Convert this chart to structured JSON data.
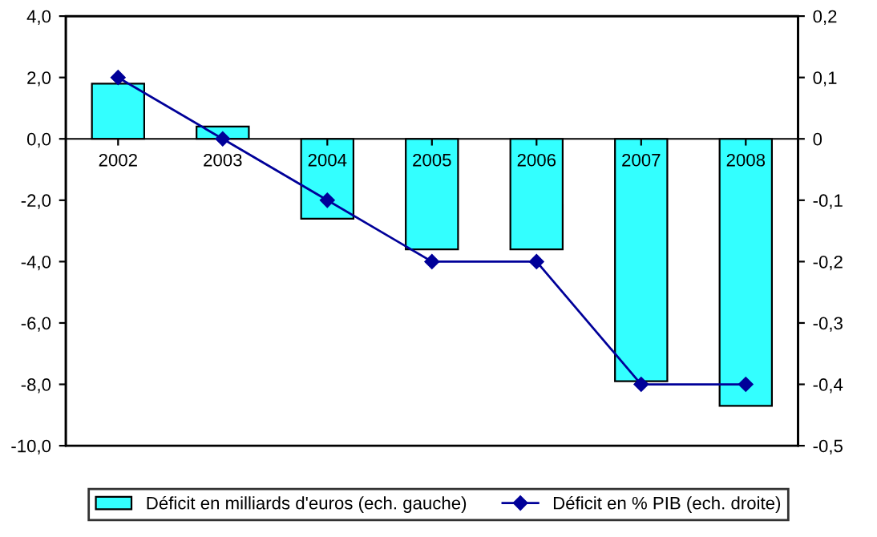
{
  "chart_data": {
    "type": "bar",
    "categories": [
      "2002",
      "2003",
      "2004",
      "2005",
      "2006",
      "2007",
      "2008"
    ],
    "series": [
      {
        "name": "Déficit en milliards d'euros (ech. gauche)",
        "color": "#33ffff",
        "values": [
          1.8,
          0.4,
          -2.6,
          -3.6,
          -3.6,
          -7.9,
          -8.7
        ]
      },
      {
        "name": "Déficit en % PIB (ech. droite)",
        "type": "line",
        "axis": "y2",
        "color": "#000099",
        "marker": "diamond",
        "values": [
          0.1,
          0,
          -0.1,
          -0.2,
          -0.2,
          -0.4,
          -0.4
        ]
      }
    ],
    "ylim": [
      -10,
      4
    ],
    "yticks": [
      {
        "value": -10,
        "label": "-10,0"
      },
      {
        "value": -8,
        "label": "-8,0"
      },
      {
        "value": -6,
        "label": "-6,0"
      },
      {
        "value": -4,
        "label": "-4,0"
      },
      {
        "value": -2,
        "label": "-2,0"
      },
      {
        "value": 0,
        "label": "0,0"
      },
      {
        "value": 2,
        "label": "2,0"
      },
      {
        "value": 4,
        "label": "4,0"
      }
    ],
    "y2lim": [
      -0.5,
      0.2
    ],
    "y2ticks": [
      {
        "value": -0.5,
        "label": "-0,5"
      },
      {
        "value": -0.4,
        "label": "-0,4"
      },
      {
        "value": -0.3,
        "label": "-0,3"
      },
      {
        "value": -0.2,
        "label": "-0,2"
      },
      {
        "value": -0.1,
        "label": "-0,1"
      },
      0,
      {
        "value": 0.1,
        "label": "0,1"
      },
      {
        "value": 0.2,
        "label": "0,2"
      }
    ],
    "grid": false,
    "legend": "bottom"
  }
}
